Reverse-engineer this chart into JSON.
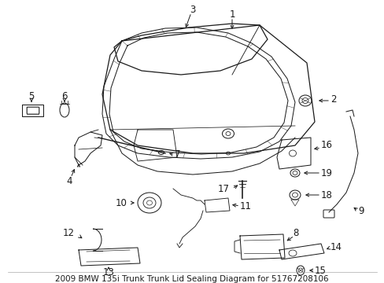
{
  "title": "2009 BMW 135i Trunk Trunk Lid Sealing Diagram for 51767208106",
  "bg_color": "#ffffff",
  "line_color": "#1a1a1a",
  "label_fontsize": 8.5,
  "title_fontsize": 7.5,
  "fig_width": 4.89,
  "fig_height": 3.6,
  "dpi": 100
}
